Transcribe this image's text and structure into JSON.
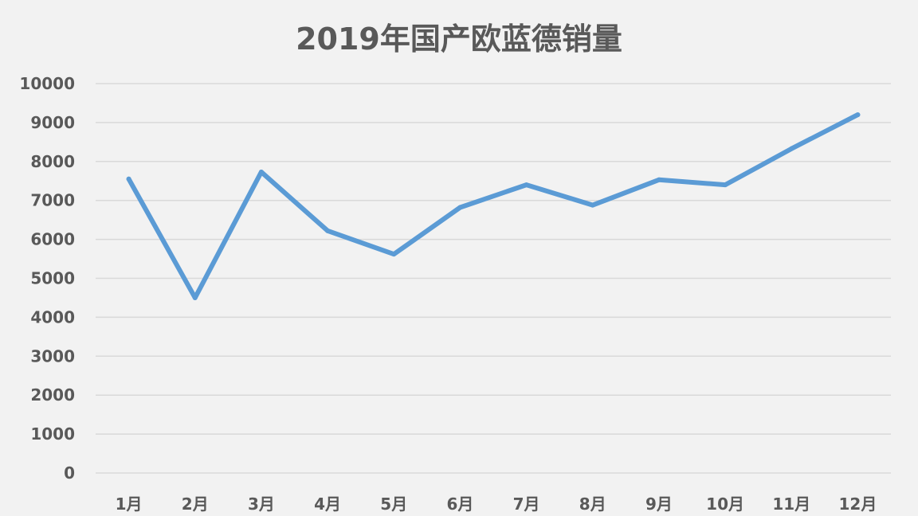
{
  "chart_data": {
    "type": "line",
    "title": "2019年国产欧蓝德销量",
    "xlabel": "",
    "ylabel": "",
    "categories": [
      "1月",
      "2月",
      "3月",
      "4月",
      "5月",
      "6月",
      "7月",
      "8月",
      "9月",
      "10月",
      "11月",
      "12月"
    ],
    "series": [
      {
        "values": [
          7550,
          4500,
          7730,
          6220,
          5620,
          6820,
          7400,
          6880,
          7530,
          7400,
          8330,
          9200
        ]
      }
    ],
    "ylim": [
      0,
      10000
    ],
    "yticks": [
      "0",
      "1000",
      "2000",
      "3000",
      "4000",
      "5000",
      "6000",
      "7000",
      "8000",
      "9000",
      "10000"
    ],
    "grid": true,
    "legend": "none",
    "colors": {
      "line": "#5b9bd5",
      "grid": "#d9d9d9",
      "text": "#595959",
      "background": "#f2f2f2"
    }
  }
}
